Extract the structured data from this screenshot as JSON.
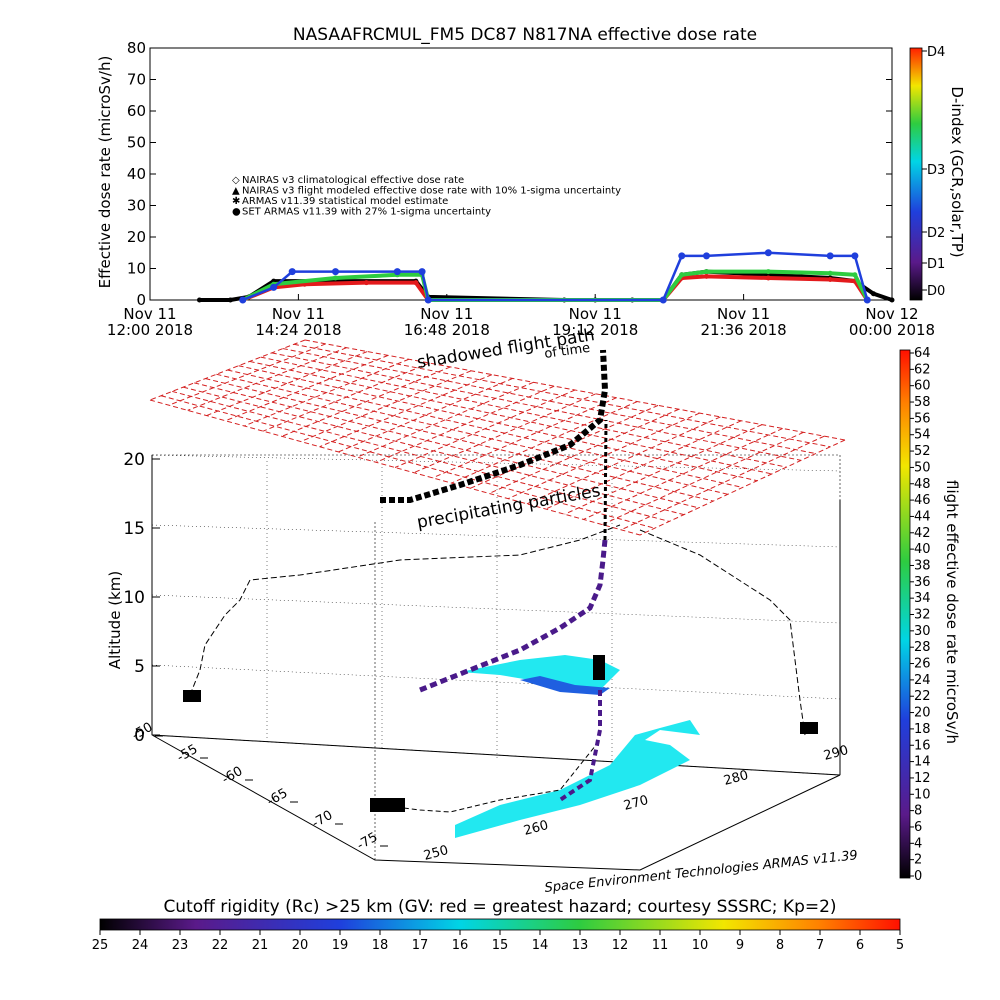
{
  "chart_data": [
    {
      "type": "line",
      "title": "NASAAFRCMUL_FM5 DC87 N817NA effective dose rate",
      "ylabel": "Effective dose rate (microSv/h)",
      "ylim": [
        0,
        80
      ],
      "yticks": [
        0,
        10,
        20,
        30,
        40,
        50,
        60,
        70,
        80
      ],
      "xticks": [
        {
          "line1": "Nov 11",
          "line2": "12:00 2018",
          "h": 12.0
        },
        {
          "line1": "Nov 11",
          "line2": "14:24 2018",
          "h": 14.4
        },
        {
          "line1": "Nov 11",
          "line2": "16:48 2018",
          "h": 16.8
        },
        {
          "line1": "Nov 11",
          "line2": "19:12 2018",
          "h": 19.2
        },
        {
          "line1": "Nov 11",
          "line2": "21:36 2018",
          "h": 21.6
        },
        {
          "line1": "Nov 12",
          "line2": "00:00 2018",
          "h": 24.0
        }
      ],
      "xlim_hours": [
        12,
        24
      ],
      "legend": [
        {
          "symbol": "◇",
          "color": "#e31a1c",
          "text": "NAIRAS v3 climatological effective dose rate"
        },
        {
          "symbol": "▲",
          "color": "#000000",
          "text": "NAIRAS v3 flight modeled effective dose rate with 10% 1-sigma uncertainty"
        },
        {
          "symbol": "✱",
          "color": "#2ecc40",
          "text": "ARMAS v11.39 statistical model estimate"
        },
        {
          "symbol": "●",
          "color": "#1f3fdc",
          "text": "SET ARMAS v11.39 with 27% 1-sigma uncertainty"
        }
      ],
      "series": [
        {
          "color": "#000000",
          "x": [
            12.8,
            13.3,
            13.6,
            14.0,
            16.3,
            16.5,
            18.7,
            19.2,
            19.8,
            20.3,
            20.6,
            21.0,
            22.0,
            23.0,
            23.4,
            23.7,
            24.0
          ],
          "values": [
            0,
            0,
            1,
            6,
            6,
            1,
            0,
            0,
            0,
            0,
            8,
            9,
            8,
            7,
            6,
            2,
            0
          ]
        },
        {
          "color": "#e31a1c",
          "x": [
            13.5,
            14.0,
            14.5,
            15.5,
            16.3,
            16.5,
            20.3,
            20.6,
            21.0,
            22.0,
            23.0,
            23.4,
            23.6
          ],
          "values": [
            0,
            4,
            5,
            5.5,
            5.5,
            0,
            0,
            7,
            7.5,
            7,
            6.5,
            6,
            0
          ]
        },
        {
          "color": "#2ecc40",
          "x": [
            13.5,
            14.0,
            15.0,
            16.0,
            16.4,
            16.5,
            20.3,
            20.6,
            21.0,
            22.0,
            23.0,
            23.4,
            23.6
          ],
          "values": [
            0,
            5,
            7,
            8,
            8,
            0,
            0,
            8,
            9,
            9,
            8.5,
            8,
            0
          ]
        },
        {
          "color": "#1f3fdc",
          "x": [
            13.5,
            14.0,
            14.3,
            15.0,
            16.0,
            16.4,
            16.5,
            20.3,
            20.6,
            21.0,
            22.0,
            23.0,
            23.4,
            23.6
          ],
          "values": [
            0,
            4,
            9,
            9,
            9,
            9,
            0,
            0,
            14,
            14,
            15,
            14,
            14,
            0
          ]
        }
      ],
      "right_axis": {
        "label": "D-index (GCR,solar,TP)",
        "ticks": [
          "D0",
          "D1",
          "D2",
          "D3",
          "D4"
        ]
      }
    },
    {
      "type": "scatter",
      "zlabel": "Altitude (km)",
      "zticks": [
        0,
        5,
        10,
        15,
        20
      ],
      "lat_ticks": [
        -50,
        -55,
        -60,
        -65,
        -70,
        -75
      ],
      "lon_ticks": [
        250,
        260,
        270,
        280,
        290
      ],
      "annotations": [
        "shadowed flight path",
        "of time",
        "precipitating particles"
      ],
      "credit": "Space Environment Technologies ARMAS v11.39",
      "right_colorbar": {
        "label": "flight effective dose rate microSv/h",
        "ticks": [
          0,
          2,
          4,
          6,
          8,
          10,
          12,
          14,
          16,
          18,
          20,
          22,
          24,
          26,
          28,
          30,
          32,
          34,
          36,
          38,
          40,
          42,
          44,
          46,
          48,
          50,
          52,
          54,
          56,
          58,
          60,
          62,
          64
        ]
      },
      "bottom_colorbar": {
        "label": "Cutoff rigidity (Rc) >25 km (GV: red = greatest hazard; courtesy SSSRC; Kp=2)",
        "ticks": [
          25,
          24,
          23,
          22,
          21,
          20,
          19,
          18,
          17,
          16,
          15,
          14,
          13,
          12,
          11,
          10,
          9,
          8,
          7,
          6,
          5
        ]
      }
    }
  ]
}
